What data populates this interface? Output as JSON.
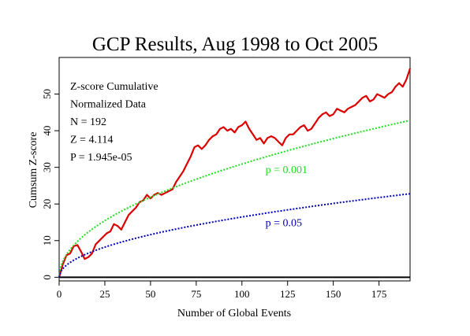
{
  "chart_data": {
    "type": "line",
    "title": "GCP Results, Aug 1998 to Oct 2005",
    "xlabel": "Number of Global Events",
    "ylabel": "Cumsum Z-score",
    "xlim": [
      0,
      192
    ],
    "ylim": [
      -1,
      60
    ],
    "x_ticks": [
      0,
      25,
      50,
      75,
      100,
      125,
      150,
      175
    ],
    "y_ticks": [
      0,
      10,
      20,
      30,
      40,
      50
    ],
    "legend_text": [
      "Z-score Cumulative",
      "Normalized Data",
      "N = 192",
      "Z = 4.114",
      "P = 1.945e-05"
    ],
    "series": [
      {
        "kind": "observed",
        "color": "#dd0000",
        "points": [
          [
            0,
            0
          ],
          [
            2,
            3.5
          ],
          [
            4,
            6
          ],
          [
            6,
            6.5
          ],
          [
            8,
            8.5
          ],
          [
            10,
            8.8
          ],
          [
            12,
            7
          ],
          [
            14,
            5
          ],
          [
            16,
            5.5
          ],
          [
            18,
            6.5
          ],
          [
            20,
            9
          ],
          [
            22,
            10
          ],
          [
            24,
            11
          ],
          [
            26,
            12
          ],
          [
            28,
            12.5
          ],
          [
            30,
            14.5
          ],
          [
            32,
            14
          ],
          [
            34,
            13
          ],
          [
            36,
            15
          ],
          [
            38,
            17
          ],
          [
            40,
            18
          ],
          [
            42,
            19
          ],
          [
            44,
            20.5
          ],
          [
            46,
            21
          ],
          [
            48,
            22.5
          ],
          [
            50,
            21.5
          ],
          [
            52,
            22.5
          ],
          [
            54,
            23
          ],
          [
            56,
            22.5
          ],
          [
            58,
            23
          ],
          [
            60,
            23.5
          ],
          [
            62,
            24
          ],
          [
            64,
            26
          ],
          [
            66,
            27.5
          ],
          [
            68,
            29
          ],
          [
            70,
            31
          ],
          [
            72,
            33
          ],
          [
            74,
            35.5
          ],
          [
            76,
            36
          ],
          [
            78,
            35
          ],
          [
            80,
            36
          ],
          [
            82,
            37.5
          ],
          [
            84,
            38.5
          ],
          [
            86,
            39
          ],
          [
            88,
            40.5
          ],
          [
            90,
            41
          ],
          [
            92,
            40
          ],
          [
            94,
            40.5
          ],
          [
            96,
            39.5
          ],
          [
            98,
            41
          ],
          [
            100,
            41.5
          ],
          [
            102,
            42.5
          ],
          [
            104,
            40.5
          ],
          [
            106,
            39
          ],
          [
            108,
            37.5
          ],
          [
            110,
            38
          ],
          [
            112,
            36.5
          ],
          [
            114,
            38
          ],
          [
            116,
            38.5
          ],
          [
            118,
            38
          ],
          [
            120,
            37
          ],
          [
            122,
            36
          ],
          [
            124,
            38
          ],
          [
            126,
            39
          ],
          [
            128,
            39
          ],
          [
            130,
            40
          ],
          [
            132,
            41
          ],
          [
            134,
            41.5
          ],
          [
            136,
            40
          ],
          [
            138,
            40.5
          ],
          [
            140,
            42
          ],
          [
            142,
            43.5
          ],
          [
            144,
            44.5
          ],
          [
            146,
            45
          ],
          [
            148,
            44
          ],
          [
            150,
            44.5
          ],
          [
            152,
            46
          ],
          [
            154,
            45.5
          ],
          [
            156,
            45
          ],
          [
            158,
            46
          ],
          [
            160,
            46.5
          ],
          [
            162,
            47
          ],
          [
            164,
            48
          ],
          [
            166,
            49
          ],
          [
            168,
            49.5
          ],
          [
            170,
            48
          ],
          [
            172,
            48.5
          ],
          [
            174,
            50
          ],
          [
            176,
            49.5
          ],
          [
            178,
            49
          ],
          [
            180,
            50
          ],
          [
            182,
            50.5
          ],
          [
            184,
            52
          ],
          [
            186,
            53
          ],
          [
            188,
            52
          ],
          [
            190,
            54
          ],
          [
            192,
            57
          ]
        ]
      },
      {
        "kind": "envelope",
        "label": "p = 0.001",
        "color": "#22dd22",
        "coefficient": 3.09
      },
      {
        "kind": "envelope",
        "label": "p = 0.05",
        "color": "#0000bb",
        "coefficient": 1.645
      }
    ],
    "grid": false,
    "legend": "top-left"
  }
}
